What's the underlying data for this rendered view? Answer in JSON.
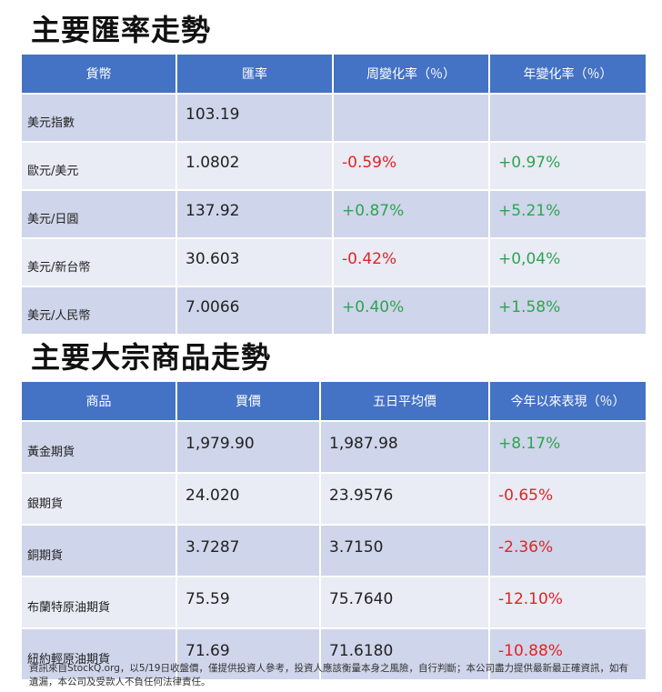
{
  "exchange": {
    "title": "主要匯率走勢",
    "headers": [
      "貨幣",
      "匯率",
      "周變化率（％）",
      "年變化率（％）"
    ],
    "rows": [
      {
        "name": "美元指數",
        "rate": "103.19",
        "weekly": "",
        "yearly": ""
      },
      {
        "name": "歐元/美元",
        "rate": "1.0802",
        "weekly": "-0.59%",
        "yearly": "+0.97%"
      },
      {
        "name": "美元/日圓",
        "rate": "137.92",
        "weekly": "+0.87%",
        "yearly": "+5.21%"
      },
      {
        "name": "美元/新台幣",
        "rate": "30.603",
        "weekly": "-0.42%",
        "yearly": "+0,04%"
      },
      {
        "name": "美元/人民幣",
        "rate": "7.0066",
        "weekly": "+0.40%",
        "yearly": "+1.58%"
      }
    ]
  },
  "commodities": {
    "title": "主要大宗商品走勢",
    "headers": [
      "商品",
      "買價",
      "五日平均價",
      "今年以來表現（％）"
    ],
    "rows": [
      {
        "name": "黃金期貨",
        "bid": "1,979.90",
        "avg5": "1,987.98",
        "ytd": "+8.17%"
      },
      {
        "name": "銀期貨",
        "bid": "24.020",
        "avg5": "23.9576",
        "ytd": "-0.65%"
      },
      {
        "name": "銅期貨",
        "bid": "3.7287",
        "avg5": "3.7150",
        "ytd": "-2.36%"
      },
      {
        "name": "布蘭特原油期貨",
        "bid": "75.59",
        "avg5": "75.7640",
        "ytd": "-12.10%"
      },
      {
        "name": "紐約輕原油期貨",
        "bid": "71.69",
        "avg5": "71.6180",
        "ytd": "-10.88%"
      }
    ]
  },
  "colors": {
    "positive": "#2ea44f",
    "negative": "#e02424",
    "header_bg": "#4472c4"
  },
  "footnote": "資訊來自StockQ.org，以5/19日收盤價，僅提供投資人參考，投資人應該衡量本身之風險，自行判斷；本公司盡力提供最新最正確資訊，如有遺漏，本公司及受款人不負任何法律責任。"
}
